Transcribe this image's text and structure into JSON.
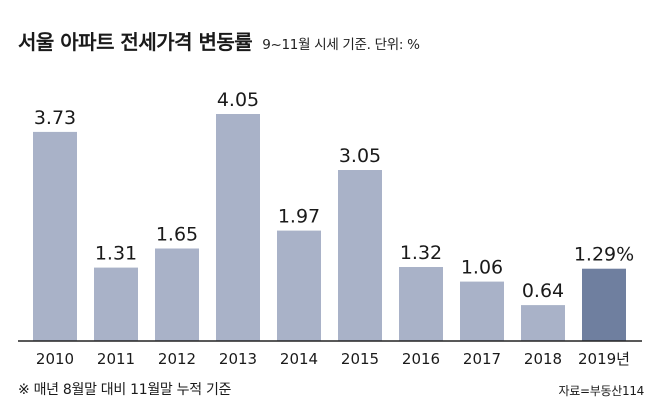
{
  "chart_data": {
    "type": "bar",
    "title": "서울 아파트 전세가격 변동률",
    "subtitle": "9~11월 시세 기준. 단위: %",
    "categories": [
      "2010",
      "2011",
      "2012",
      "2013",
      "2014",
      "2015",
      "2016",
      "2017",
      "2018",
      "2019년"
    ],
    "values": [
      3.73,
      1.31,
      1.65,
      4.05,
      1.97,
      3.05,
      1.32,
      1.06,
      0.64,
      1.29
    ],
    "value_labels": [
      "3.73",
      "1.31",
      "1.65",
      "4.05",
      "1.97",
      "3.05",
      "1.32",
      "1.06",
      "0.64",
      "1.29%"
    ],
    "ylim": [
      0,
      4.05
    ],
    "grid": false,
    "colors": {
      "bar": "#a9b2c8",
      "highlight_bar": "#6f7f9f",
      "baseline": "#222222"
    },
    "highlight_index": 9
  },
  "footnote": "※ 매년 8월말 대비 11월말 누적 기준",
  "source": "자료=부동산114"
}
